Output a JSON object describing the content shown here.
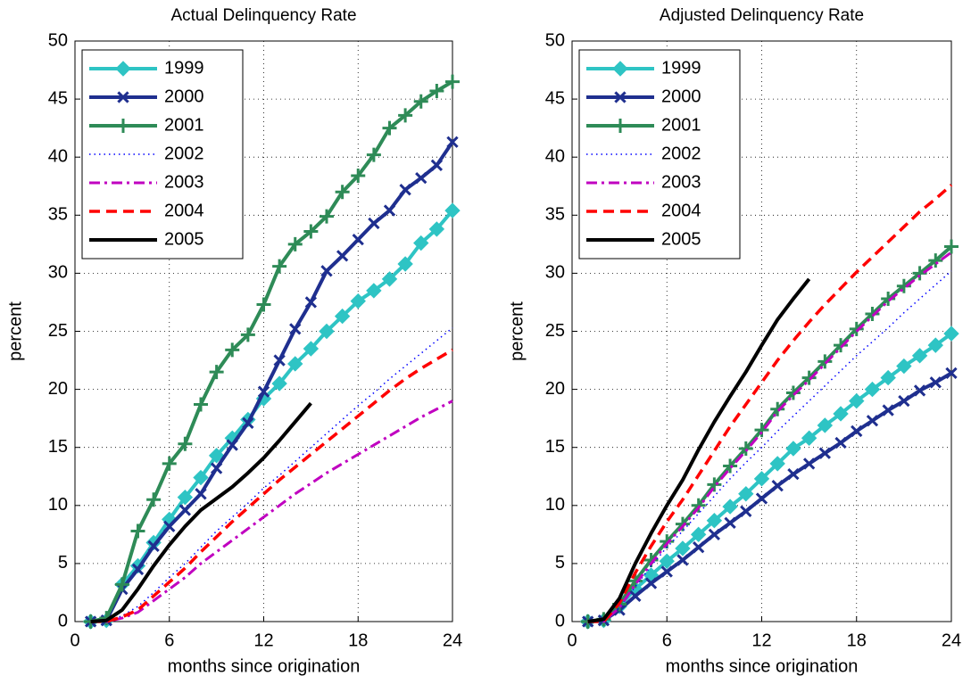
{
  "chart_data": [
    {
      "type": "line",
      "title": "Actual Delinquency Rate",
      "xlabel": "months since origination",
      "ylabel": "percent",
      "x": [
        1,
        2,
        3,
        4,
        5,
        6,
        7,
        8,
        9,
        10,
        11,
        12,
        13,
        14,
        15,
        16,
        17,
        18,
        19,
        20,
        21,
        22,
        23,
        24
      ],
      "xlim": [
        0,
        24
      ],
      "xticks": [
        0,
        6,
        12,
        18,
        24
      ],
      "ylim": [
        0,
        50
      ],
      "yticks": [
        0,
        5,
        10,
        15,
        20,
        25,
        30,
        35,
        40,
        45,
        50
      ],
      "grid": true,
      "legend": "upper left",
      "series": [
        {
          "name": "1999",
          "color": "#2ec4c4",
          "line_style": "solid",
          "marker": "diamond",
          "values": [
            0,
            0.1,
            3.2,
            4.8,
            6.8,
            8.8,
            10.7,
            12.4,
            14.3,
            15.8,
            17.4,
            19.2,
            20.5,
            22.2,
            23.5,
            25.0,
            26.3,
            27.6,
            28.5,
            29.5,
            30.8,
            32.6,
            33.8,
            35.4
          ]
        },
        {
          "name": "2000",
          "color": "#1f2f8f",
          "line_style": "solid",
          "marker": "x",
          "values": [
            0,
            0.1,
            2.8,
            4.5,
            6.5,
            8.2,
            9.6,
            11.0,
            13.2,
            15.2,
            17.1,
            19.8,
            22.5,
            25.2,
            27.5,
            30.2,
            31.5,
            32.9,
            34.3,
            35.4,
            37.2,
            38.2,
            39.3,
            41.3
          ]
        },
        {
          "name": "2001",
          "color": "#2e8b57",
          "line_style": "solid",
          "marker": "plus",
          "values": [
            0,
            0.3,
            3.2,
            7.8,
            10.5,
            13.6,
            15.3,
            18.7,
            21.5,
            23.4,
            24.7,
            27.3,
            30.6,
            32.5,
            33.6,
            34.9,
            37.0,
            38.4,
            40.2,
            42.5,
            43.6,
            44.8,
            45.7,
            46.5
          ]
        },
        {
          "name": "2002",
          "color": "#0000ff",
          "line_style": "dotted",
          "marker": "none",
          "values": [
            0,
            0,
            0.5,
            1.3,
            2.5,
            3.8,
            5.0,
            6.4,
            7.8,
            9.0,
            10.2,
            11.5,
            12.6,
            13.8,
            15.0,
            16.2,
            17.4,
            18.6,
            19.7,
            20.9,
            22.0,
            23.1,
            24.2,
            25.3
          ]
        },
        {
          "name": "2003",
          "color": "#c000c0",
          "line_style": "dashdot",
          "marker": "none",
          "values": [
            0,
            0,
            0.3,
            0.8,
            1.8,
            2.8,
            3.8,
            5.0,
            6.0,
            7.0,
            8.0,
            9.0,
            10.0,
            11.0,
            11.9,
            12.8,
            13.6,
            14.4,
            15.2,
            16.0,
            16.8,
            17.6,
            18.3,
            19.0
          ]
        },
        {
          "name": "2004",
          "color": "#ff0000",
          "line_style": "dashed",
          "marker": "none",
          "values": [
            0,
            0,
            0.4,
            1.0,
            2.2,
            3.4,
            4.6,
            6.0,
            7.3,
            8.6,
            9.8,
            11.0,
            12.2,
            13.3,
            14.4,
            15.5,
            16.6,
            17.7,
            18.8,
            19.9,
            20.9,
            21.8,
            22.6,
            23.4
          ]
        },
        {
          "name": "2005",
          "color": "#000000",
          "line_style": "solid",
          "marker": "none",
          "values": [
            0,
            0.1,
            1.0,
            2.8,
            4.8,
            6.6,
            8.2,
            9.6,
            10.6,
            11.6,
            12.8,
            14.1,
            15.6,
            17.2,
            18.8,
            null,
            null,
            null,
            null,
            null,
            null,
            null,
            null,
            null
          ]
        }
      ]
    },
    {
      "type": "line",
      "title": "Adjusted Delinquency Rate",
      "xlabel": "months since origination",
      "ylabel": "percent",
      "x": [
        1,
        2,
        3,
        4,
        5,
        6,
        7,
        8,
        9,
        10,
        11,
        12,
        13,
        14,
        15,
        16,
        17,
        18,
        19,
        20,
        21,
        22,
        23,
        24
      ],
      "xlim": [
        0,
        24
      ],
      "xticks": [
        0,
        6,
        12,
        18,
        24
      ],
      "ylim": [
        0,
        50
      ],
      "yticks": [
        0,
        5,
        10,
        15,
        20,
        25,
        30,
        35,
        40,
        45,
        50
      ],
      "grid": true,
      "legend": "upper left",
      "series": [
        {
          "name": "1999",
          "color": "#2ec4c4",
          "line_style": "solid",
          "marker": "diamond",
          "values": [
            0,
            0.1,
            1.3,
            2.8,
            4.0,
            5.2,
            6.3,
            7.5,
            8.7,
            9.9,
            11.0,
            12.3,
            13.6,
            14.9,
            15.8,
            16.9,
            17.9,
            19.0,
            20.0,
            21.0,
            22.0,
            22.9,
            23.8,
            24.8
          ]
        },
        {
          "name": "2000",
          "color": "#1f2f8f",
          "line_style": "solid",
          "marker": "x",
          "values": [
            0,
            0.1,
            1.0,
            2.2,
            3.3,
            4.3,
            5.3,
            6.4,
            7.5,
            8.5,
            9.5,
            10.6,
            11.7,
            12.7,
            13.6,
            14.5,
            15.4,
            16.4,
            17.3,
            18.2,
            19.0,
            19.9,
            20.6,
            21.4
          ]
        },
        {
          "name": "2001",
          "color": "#2e8b57",
          "line_style": "solid",
          "marker": "plus",
          "values": [
            0,
            0.2,
            1.5,
            3.5,
            5.3,
            6.9,
            8.4,
            10.0,
            11.8,
            13.4,
            14.9,
            16.5,
            18.3,
            19.7,
            21.0,
            22.4,
            23.8,
            25.2,
            26.5,
            27.8,
            28.9,
            30.0,
            31.1,
            32.3
          ]
        },
        {
          "name": "2002",
          "color": "#0000ff",
          "line_style": "dotted",
          "marker": "none",
          "values": [
            0,
            0,
            1.2,
            3.0,
            4.8,
            6.4,
            7.8,
            9.3,
            10.8,
            12.3,
            13.7,
            15.0,
            16.4,
            17.7,
            19.0,
            20.3,
            21.6,
            22.9,
            24.1,
            25.3,
            26.6,
            27.8,
            29.0,
            30.2
          ]
        },
        {
          "name": "2003",
          "color": "#c000c0",
          "line_style": "dashdot",
          "marker": "none",
          "values": [
            0,
            0,
            1.2,
            3.2,
            5.0,
            6.7,
            8.2,
            9.8,
            11.6,
            13.2,
            14.7,
            16.3,
            18.1,
            19.5,
            20.8,
            22.2,
            23.6,
            25.0,
            26.3,
            27.6,
            28.7,
            29.8,
            30.8,
            31.8
          ]
        },
        {
          "name": "2004",
          "color": "#ff0000",
          "line_style": "dashed",
          "marker": "none",
          "values": [
            0,
            0,
            1.6,
            4.2,
            6.5,
            8.6,
            10.5,
            12.6,
            14.7,
            16.8,
            18.7,
            20.6,
            22.5,
            24.2,
            25.8,
            27.3,
            28.7,
            30.1,
            31.4,
            32.7,
            34.0,
            35.3,
            36.4,
            37.6
          ]
        },
        {
          "name": "2005",
          "color": "#000000",
          "line_style": "solid",
          "marker": "none",
          "values": [
            0,
            0.2,
            2.0,
            5.0,
            7.6,
            10.0,
            12.2,
            14.8,
            17.2,
            19.4,
            21.5,
            23.8,
            26.0,
            27.8,
            29.5,
            null,
            null,
            null,
            null,
            null,
            null,
            null,
            null,
            null
          ]
        }
      ]
    }
  ]
}
